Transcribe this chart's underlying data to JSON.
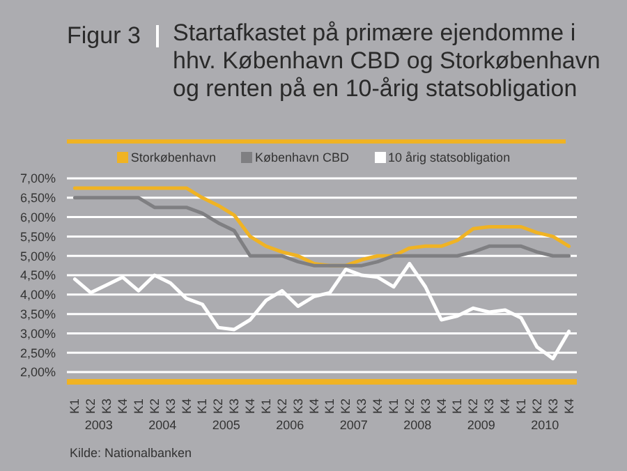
{
  "chart_data": {
    "type": "line",
    "title": "Figur 3",
    "subtitle": "Startafkastet på primære ejendomme i hhv. København CBD og Storkøbenhavn og renten på en 10-årig statsobligation",
    "categories": [
      "K1",
      "K2",
      "K3",
      "K4",
      "K1",
      "K2",
      "K3",
      "K4",
      "K1",
      "K2",
      "K3",
      "K4",
      "K1",
      "K2",
      "K3",
      "K4",
      "K1",
      "K2",
      "K3",
      "K4",
      "K1",
      "K2",
      "K3",
      "K4",
      "K1",
      "K2",
      "K3",
      "K4",
      "K1",
      "K2",
      "K3",
      "K4"
    ],
    "series": [
      {
        "name": "Storkøbenhavn",
        "color": "#f0b323",
        "values": [
          6.75,
          6.75,
          6.75,
          6.75,
          6.75,
          6.75,
          6.75,
          6.75,
          6.5,
          6.3,
          6.05,
          5.5,
          5.25,
          5.1,
          5.0,
          4.8,
          4.75,
          4.75,
          4.9,
          5.0,
          5.0,
          5.2,
          5.25,
          5.25,
          5.4,
          5.7,
          5.75,
          5.75,
          5.75,
          5.6,
          5.5,
          5.25
        ]
      },
      {
        "name": "København CBD",
        "color": "#7f7f82",
        "values": [
          6.5,
          6.5,
          6.5,
          6.5,
          6.5,
          6.25,
          6.25,
          6.25,
          6.1,
          5.85,
          5.65,
          5.0,
          5.0,
          5.0,
          4.85,
          4.75,
          4.75,
          4.75,
          4.75,
          4.85,
          5.0,
          5.0,
          5.0,
          5.0,
          5.0,
          5.1,
          5.25,
          5.25,
          5.25,
          5.1,
          5.0,
          5.0
        ]
      },
      {
        "name": "10 årig statsobligation",
        "color": "#ffffff",
        "values": [
          4.4,
          4.05,
          4.25,
          4.45,
          4.1,
          4.5,
          4.3,
          3.9,
          3.75,
          3.15,
          3.1,
          3.35,
          3.85,
          4.1,
          3.7,
          3.95,
          4.05,
          4.65,
          4.5,
          4.45,
          4.2,
          4.8,
          4.2,
          3.35,
          3.45,
          3.65,
          3.55,
          3.6,
          3.4,
          2.65,
          2.35,
          3.05
        ]
      }
    ],
    "ylim": [
      1.75,
      7
    ],
    "yticks": [
      {
        "value": 2,
        "label": "2,00%"
      },
      {
        "value": 2.5,
        "label": "2,50%"
      },
      {
        "value": 3,
        "label": "3,00%"
      },
      {
        "value": 3.5,
        "label": "3,50%"
      },
      {
        "value": 4,
        "label": "4,00%"
      },
      {
        "value": 4.5,
        "label": "4,50%"
      },
      {
        "value": 5,
        "label": "5,00%"
      },
      {
        "value": 5.5,
        "label": "5,50%"
      },
      {
        "value": 6,
        "label": "6,00%"
      },
      {
        "value": 6.5,
        "label": "6,50%"
      },
      {
        "value": 7,
        "label": "7,00%"
      }
    ],
    "grid": "y",
    "legend": "top",
    "marker": "none",
    "line_style": "solid",
    "annotations": [
      "2003",
      "2004",
      "2005",
      "2006",
      "2007",
      "2008",
      "2009",
      "2010",
      "Kilde: Nationalbanken"
    ]
  }
}
